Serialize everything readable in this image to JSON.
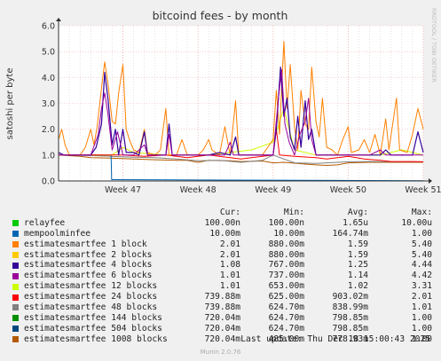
{
  "app": {
    "brand": "RRDTOOL / TOBI OETIKER",
    "last_update": "Last update: Thu Dec 18 15:00:43 2025",
    "footer": "Munin 2.0.76"
  },
  "chart_data": {
    "type": "line",
    "title": "bitcoind fees - by month",
    "ylabel": "satoshi per byte",
    "ylim": [
      0,
      6.0
    ],
    "yticks": [
      "0.0",
      "1.0",
      "2.0",
      "3.0",
      "4.0",
      "5.0",
      "6.0"
    ],
    "xticks": [
      "Week 47",
      "Week 48",
      "Week 49",
      "Week 50",
      "Week 51"
    ],
    "grid": true,
    "legend_position": "bottom",
    "legend_headers": {
      "cur": "Cur:",
      "min": "Min:",
      "avg": "Avg:",
      "max": "Max:"
    },
    "legend": [
      {
        "name": "relayfee",
        "cur": "100.00n",
        "min": "100.00n",
        "avg": "1.65u",
        "max": "10.00u",
        "color": "#00cc00"
      },
      {
        "name": "mempoolminfee",
        "cur": "10.00m",
        "min": "10.00m",
        "avg": "164.74m",
        "max": "1.00",
        "color": "#0066b3"
      },
      {
        "name": "estimatesmartfee 1 block",
        "cur": "2.01",
        "min": "880.00m",
        "avg": "1.59",
        "max": "5.40",
        "color": "#ff8000"
      },
      {
        "name": "estimatesmartfee 2 blocks",
        "cur": "2.01",
        "min": "880.00m",
        "avg": "1.59",
        "max": "5.40",
        "color": "#ffcc00"
      },
      {
        "name": "estimatesmartfee 4 blocks",
        "cur": "1.08",
        "min": "767.00m",
        "avg": "1.25",
        "max": "4.44",
        "color": "#330099"
      },
      {
        "name": "estimatesmartfee 6 blocks",
        "cur": "1.01",
        "min": "737.00m",
        "avg": "1.14",
        "max": "4.42",
        "color": "#990099"
      },
      {
        "name": "estimatesmartfee 12 blocks",
        "cur": "1.01",
        "min": "653.00m",
        "avg": "1.02",
        "max": "3.31",
        "color": "#ccff00"
      },
      {
        "name": "estimatesmartfee 24 blocks",
        "cur": "739.88m",
        "min": "625.00m",
        "avg": "903.02m",
        "max": "2.01",
        "color": "#ff0000"
      },
      {
        "name": "estimatesmartfee 48 blocks",
        "cur": "739.88m",
        "min": "624.70m",
        "avg": "838.99m",
        "max": "1.01",
        "color": "#808080"
      },
      {
        "name": "estimatesmartfee 144 blocks",
        "cur": "720.04m",
        "min": "624.70m",
        "avg": "798.85m",
        "max": "1.00",
        "color": "#008f00"
      },
      {
        "name": "estimatesmartfee 504 blocks",
        "cur": "720.04m",
        "min": "624.70m",
        "avg": "798.85m",
        "max": "1.00",
        "color": "#00487d"
      },
      {
        "name": "estimatesmartfee 1008 blocks",
        "cur": "720.04m",
        "min": "485.00m",
        "avg": "778.93m",
        "max": "1.00",
        "color": "#b35a00"
      }
    ],
    "x_range_days": [
      0,
      34
    ],
    "xtick_days": [
      6,
      13,
      20,
      27,
      34
    ],
    "series": [
      {
        "name": "estimatesmartfee 1008 blocks",
        "color": "#b35a00",
        "width": 1,
        "points": [
          [
            0,
            1.0
          ],
          [
            2,
            0.95
          ],
          [
            3,
            0.9
          ],
          [
            5,
            0.88
          ],
          [
            7,
            0.85
          ],
          [
            9,
            0.82
          ],
          [
            11,
            0.8
          ],
          [
            12,
            0.8
          ],
          [
            13,
            0.72
          ],
          [
            14,
            0.8
          ],
          [
            16,
            0.78
          ],
          [
            17,
            0.75
          ],
          [
            19,
            0.77
          ],
          [
            20,
            0.7
          ],
          [
            21,
            0.72
          ],
          [
            23,
            0.65
          ],
          [
            24,
            0.62
          ],
          [
            25,
            0.6
          ],
          [
            26,
            0.62
          ],
          [
            27,
            0.7
          ],
          [
            29,
            0.72
          ],
          [
            31,
            0.72
          ],
          [
            33,
            0.72
          ],
          [
            34,
            0.72
          ]
        ]
      },
      {
        "name": "estimatesmartfee 48 blocks",
        "color": "#808080",
        "width": 1,
        "points": [
          [
            0,
            1.0
          ],
          [
            3,
            0.98
          ],
          [
            5,
            0.95
          ],
          [
            7,
            0.92
          ],
          [
            9,
            0.9
          ],
          [
            11,
            0.85
          ],
          [
            13,
            0.78
          ],
          [
            15,
            0.8
          ],
          [
            17,
            0.72
          ],
          [
            19,
            0.8
          ],
          [
            20,
            1.0
          ],
          [
            22,
            0.7
          ],
          [
            24,
            0.68
          ],
          [
            26,
            0.72
          ],
          [
            27,
            0.74
          ],
          [
            29,
            0.75
          ],
          [
            31,
            0.74
          ],
          [
            34,
            0.74
          ]
        ]
      },
      {
        "name": "mempoolminfee",
        "color": "#0066b3",
        "width": 1,
        "points": [
          [
            0,
            1.0
          ],
          [
            4.9,
            1.0
          ],
          [
            4.95,
            0.05
          ],
          [
            34,
            0.01
          ]
        ]
      },
      {
        "name": "relayfee",
        "color": "#00cc00",
        "width": 1,
        "points": [
          [
            0,
            0.0
          ],
          [
            34,
            0.0
          ]
        ]
      },
      {
        "name": "estimatesmartfee 12 blocks",
        "color": "#ccff00",
        "width": 1,
        "points": [
          [
            0,
            1.0
          ],
          [
            5,
            1.0
          ],
          [
            6,
            1.3
          ],
          [
            7,
            1.1
          ],
          [
            10,
            1.0
          ],
          [
            14,
            1.0
          ],
          [
            18,
            1.2
          ],
          [
            20,
            1.5
          ],
          [
            21,
            2.8
          ],
          [
            22,
            1.2
          ],
          [
            24,
            1.0
          ],
          [
            30,
            1.0
          ],
          [
            32,
            1.2
          ],
          [
            34,
            1.0
          ]
        ]
      },
      {
        "name": "estimatesmartfee 24 blocks",
        "color": "#ff0000",
        "width": 1,
        "points": [
          [
            0,
            1.0
          ],
          [
            4,
            1.0
          ],
          [
            6,
            1.0
          ],
          [
            8,
            0.95
          ],
          [
            10,
            1.0
          ],
          [
            12,
            0.9
          ],
          [
            14,
            1.0
          ],
          [
            16,
            0.9
          ],
          [
            17,
            0.85
          ],
          [
            18,
            0.9
          ],
          [
            20,
            1.0
          ],
          [
            20.3,
            2.0
          ],
          [
            20.6,
            1.0
          ],
          [
            22,
            0.95
          ],
          [
            24,
            0.9
          ],
          [
            25,
            0.85
          ],
          [
            26,
            0.9
          ],
          [
            27,
            0.95
          ],
          [
            28.5,
            0.85
          ],
          [
            30,
            0.8
          ],
          [
            31,
            0.75
          ],
          [
            33,
            0.75
          ],
          [
            34,
            0.74
          ]
        ]
      },
      {
        "name": "estimatesmartfee 1 block",
        "color": "#ff8000",
        "width": 1,
        "points": [
          [
            0,
            1.6
          ],
          [
            0.3,
            2.0
          ],
          [
            0.6,
            1.4
          ],
          [
            1,
            1.0
          ],
          [
            2,
            1.0
          ],
          [
            2.5,
            1.3
          ],
          [
            3,
            2.0
          ],
          [
            3.3,
            1.4
          ],
          [
            3.6,
            2.1
          ],
          [
            4,
            3.6
          ],
          [
            4.3,
            4.6
          ],
          [
            4.6,
            3.8
          ],
          [
            5,
            2.3
          ],
          [
            5.3,
            2.2
          ],
          [
            5.6,
            3.4
          ],
          [
            6,
            4.5
          ],
          [
            6.3,
            2.0
          ],
          [
            6.6,
            1.6
          ],
          [
            7,
            1.2
          ],
          [
            7.5,
            1.1
          ],
          [
            8,
            2.0
          ],
          [
            8.3,
            1.1
          ],
          [
            9,
            1.0
          ],
          [
            9.5,
            1.2
          ],
          [
            10,
            2.8
          ],
          [
            10.3,
            1.0
          ],
          [
            11,
            1.0
          ],
          [
            11.5,
            1.6
          ],
          [
            12,
            1.0
          ],
          [
            12.5,
            1.0
          ],
          [
            13,
            1.0
          ],
          [
            13.5,
            1.2
          ],
          [
            14,
            1.6
          ],
          [
            14.3,
            1.2
          ],
          [
            15,
            1.0
          ],
          [
            15.5,
            2.1
          ],
          [
            16,
            1.0
          ],
          [
            16.5,
            3.1
          ],
          [
            16.8,
            1.0
          ],
          [
            18,
            1.0
          ],
          [
            19,
            1.0
          ],
          [
            19.5,
            1.3
          ],
          [
            20,
            1.6
          ],
          [
            20.3,
            3.5
          ],
          [
            20.6,
            1.8
          ],
          [
            21,
            5.4
          ],
          [
            21.3,
            2.8
          ],
          [
            21.6,
            4.5
          ],
          [
            22,
            2.1
          ],
          [
            22.3,
            1.2
          ],
          [
            22.6,
            3.5
          ],
          [
            23,
            2.2
          ],
          [
            23.3,
            2.0
          ],
          [
            23.6,
            4.4
          ],
          [
            24,
            2.3
          ],
          [
            24.3,
            1.7
          ],
          [
            24.6,
            3.2
          ],
          [
            25,
            1.3
          ],
          [
            25.5,
            1.2
          ],
          [
            26,
            1.0
          ],
          [
            26.5,
            1.6
          ],
          [
            27,
            2.1
          ],
          [
            27.3,
            1.1
          ],
          [
            28,
            1.2
          ],
          [
            28.5,
            1.6
          ],
          [
            29,
            1.1
          ],
          [
            29.5,
            1.8
          ],
          [
            30,
            1.0
          ],
          [
            30.5,
            2.4
          ],
          [
            30.8,
            1.2
          ],
          [
            31.5,
            3.2
          ],
          [
            31.8,
            1.2
          ],
          [
            32.5,
            1.1
          ],
          [
            33,
            1.8
          ],
          [
            33.5,
            2.8
          ],
          [
            34,
            2.0
          ]
        ]
      },
      {
        "name": "estimatesmartfee 4 blocks",
        "color": "#330099",
        "width": 1.2,
        "points": [
          [
            0,
            1.1
          ],
          [
            0.5,
            1.0
          ],
          [
            1,
            1.0
          ],
          [
            3,
            1.0
          ],
          [
            3.5,
            1.3
          ],
          [
            4,
            2.2
          ],
          [
            4.3,
            4.2
          ],
          [
            4.6,
            3.2
          ],
          [
            5,
            1.4
          ],
          [
            5.3,
            2.0
          ],
          [
            5.6,
            1.0
          ],
          [
            6,
            2.0
          ],
          [
            6.3,
            1.1
          ],
          [
            7,
            1.1
          ],
          [
            7.5,
            1.0
          ],
          [
            8,
            1.9
          ],
          [
            8.3,
            1.0
          ],
          [
            10,
            1.0
          ],
          [
            10.3,
            2.2
          ],
          [
            10.6,
            1.0
          ],
          [
            12,
            1.0
          ],
          [
            13,
            1.0
          ],
          [
            14,
            1.0
          ],
          [
            15,
            1.1
          ],
          [
            16,
            1.0
          ],
          [
            16.5,
            1.7
          ],
          [
            16.8,
            1.0
          ],
          [
            18,
            1.0
          ],
          [
            19,
            1.0
          ],
          [
            20,
            1.0
          ],
          [
            20.3,
            2.0
          ],
          [
            20.7,
            4.4
          ],
          [
            21,
            2.5
          ],
          [
            21.3,
            3.2
          ],
          [
            21.6,
            1.7
          ],
          [
            22,
            1.2
          ],
          [
            22.3,
            2.5
          ],
          [
            22.6,
            1.3
          ],
          [
            23,
            3.1
          ],
          [
            23.3,
            1.6
          ],
          [
            23.6,
            2.0
          ],
          [
            24,
            1.0
          ],
          [
            25,
            1.0
          ],
          [
            26,
            1.0
          ],
          [
            27,
            1.0
          ],
          [
            28,
            1.0
          ],
          [
            29,
            1.0
          ],
          [
            30,
            1.0
          ],
          [
            30.5,
            1.2
          ],
          [
            31,
            1.0
          ],
          [
            32,
            1.0
          ],
          [
            33,
            1.0
          ],
          [
            33.5,
            1.9
          ],
          [
            34,
            1.1
          ]
        ]
      },
      {
        "name": "estimatesmartfee 6 blocks",
        "color": "#990099",
        "width": 1,
        "points": [
          [
            0,
            1.0
          ],
          [
            3,
            1.0
          ],
          [
            3.7,
            1.8
          ],
          [
            4,
            2.8
          ],
          [
            4.3,
            3.4
          ],
          [
            4.6,
            2.6
          ],
          [
            5,
            1.2
          ],
          [
            5.5,
            1.9
          ],
          [
            6,
            1.0
          ],
          [
            7,
            1.0
          ],
          [
            8,
            1.4
          ],
          [
            8.3,
            1.0
          ],
          [
            10,
            1.0
          ],
          [
            10.3,
            1.8
          ],
          [
            10.6,
            1.0
          ],
          [
            13,
            1.0
          ],
          [
            15.5,
            1.0
          ],
          [
            16,
            1.5
          ],
          [
            16.3,
            1.0
          ],
          [
            19,
            1.0
          ],
          [
            20,
            1.0
          ],
          [
            20.5,
            3.2
          ],
          [
            20.8,
            4.3
          ],
          [
            21.1,
            2.2
          ],
          [
            21.5,
            1.5
          ],
          [
            22,
            1.0
          ],
          [
            22.5,
            1.8
          ],
          [
            23,
            2.3
          ],
          [
            23.3,
            3.2
          ],
          [
            23.6,
            1.6
          ],
          [
            24,
            1.0
          ],
          [
            25,
            1.0
          ],
          [
            29,
            1.0
          ],
          [
            30,
            1.2
          ],
          [
            30.5,
            1.0
          ],
          [
            34,
            1.0
          ]
        ]
      }
    ]
  }
}
